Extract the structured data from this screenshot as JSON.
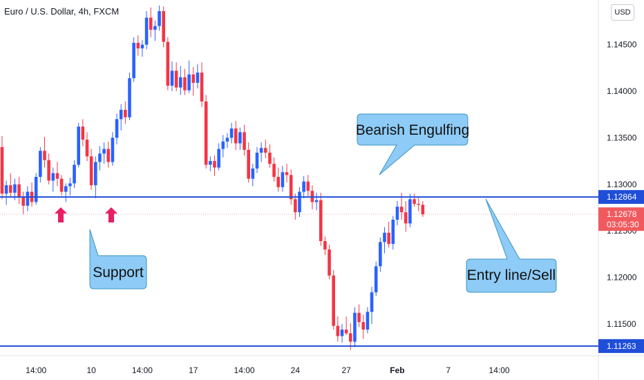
{
  "header": {
    "title": "Euro / U.S. Dollar, 4h, FXCM",
    "currency": "USD"
  },
  "colors": {
    "up": "#2962ff",
    "down": "#f23645",
    "level": "#1f4ed8",
    "callout_fill": "#8ecbf6",
    "callout_stroke": "#3a94c2",
    "arrow": "#e91e63",
    "price_tag": "#f05a5f"
  },
  "chart_data": {
    "type": "candlestick",
    "title": "Euro / U.S. Dollar, 4h, FXCM",
    "ylim": [
      1.1121,
      1.1495
    ],
    "y_ticks": [
      "1.14500",
      "1.14000",
      "1.13500",
      "1.13000",
      "1.12500",
      "1.12000",
      "1.11500"
    ],
    "y_tick_values": [
      1.145,
      1.14,
      1.135,
      1.13,
      1.125,
      1.12,
      1.115
    ],
    "x_ticks": [
      "14:00",
      "10",
      "14:00",
      "17",
      "14:00",
      "24",
      "27",
      "Feb",
      "7",
      "14:00"
    ],
    "x_tick_bold": [
      false,
      false,
      false,
      false,
      false,
      false,
      false,
      true,
      false,
      false
    ],
    "x_tick_index": [
      8,
      21,
      33,
      45,
      57,
      69,
      81,
      93,
      105,
      117
    ],
    "levels": [
      {
        "label": "1.12864",
        "value": 1.12864
      },
      {
        "label": "1.11263",
        "value": 1.11263
      }
    ],
    "last_price": {
      "label": "1.12678",
      "countdown": "03:05:30",
      "value": 1.12678
    },
    "annotations": [
      {
        "text": "Bearish Engulfing"
      },
      {
        "text": "Support"
      },
      {
        "text": "Entry line/Sell"
      }
    ],
    "candles": [
      [
        1.134,
        1.1352,
        1.1284,
        1.129
      ],
      [
        1.129,
        1.1304,
        1.1278,
        1.1299
      ],
      [
        1.1299,
        1.1312,
        1.1287,
        1.1291
      ],
      [
        1.1291,
        1.1306,
        1.1283,
        1.13
      ],
      [
        1.13,
        1.1308,
        1.1279,
        1.1286
      ],
      [
        1.1286,
        1.1292,
        1.1268,
        1.1277
      ],
      [
        1.1277,
        1.1298,
        1.1271,
        1.1292
      ],
      [
        1.1292,
        1.1302,
        1.1276,
        1.1281
      ],
      [
        1.1281,
        1.1312,
        1.1278,
        1.1308
      ],
      [
        1.1308,
        1.134,
        1.1302,
        1.1336
      ],
      [
        1.1336,
        1.1351,
        1.1318,
        1.1326
      ],
      [
        1.1326,
        1.1333,
        1.13,
        1.1304
      ],
      [
        1.1304,
        1.1318,
        1.1292,
        1.1312
      ],
      [
        1.1312,
        1.1324,
        1.1298,
        1.1306
      ],
      [
        1.1306,
        1.131,
        1.1288,
        1.1292
      ],
      [
        1.1292,
        1.1301,
        1.1281,
        1.1298
      ],
      [
        1.1298,
        1.1307,
        1.1288,
        1.1301
      ],
      [
        1.1301,
        1.1326,
        1.1296,
        1.1321
      ],
      [
        1.1321,
        1.1366,
        1.1318,
        1.1362
      ],
      [
        1.1362,
        1.137,
        1.1341,
        1.1348
      ],
      [
        1.1348,
        1.1356,
        1.1325,
        1.133
      ],
      [
        1.133,
        1.1338,
        1.1294,
        1.1299
      ],
      [
        1.1299,
        1.133,
        1.1285,
        1.1324
      ],
      [
        1.1324,
        1.1341,
        1.1315,
        1.1333
      ],
      [
        1.1333,
        1.1345,
        1.1322,
        1.1338
      ],
      [
        1.1338,
        1.1346,
        1.1318,
        1.1324
      ],
      [
        1.1324,
        1.1356,
        1.132,
        1.135
      ],
      [
        1.135,
        1.1376,
        1.1343,
        1.137
      ],
      [
        1.137,
        1.1386,
        1.1358,
        1.138
      ],
      [
        1.138,
        1.1389,
        1.1365,
        1.1372
      ],
      [
        1.1372,
        1.142,
        1.1369,
        1.1414
      ],
      [
        1.1414,
        1.1458,
        1.141,
        1.1452
      ],
      [
        1.1452,
        1.146,
        1.1438,
        1.1446
      ],
      [
        1.1446,
        1.1455,
        1.1437,
        1.145
      ],
      [
        1.145,
        1.1486,
        1.1445,
        1.1479
      ],
      [
        1.1479,
        1.149,
        1.1458,
        1.1466
      ],
      [
        1.1466,
        1.1476,
        1.1454,
        1.147
      ],
      [
        1.147,
        1.1492,
        1.1465,
        1.1486
      ],
      [
        1.1486,
        1.1491,
        1.1447,
        1.1453
      ],
      [
        1.1453,
        1.1458,
        1.1401,
        1.1406
      ],
      [
        1.1406,
        1.1432,
        1.14,
        1.1422
      ],
      [
        1.1422,
        1.1431,
        1.14,
        1.1404
      ],
      [
        1.1404,
        1.1427,
        1.1396,
        1.1415
      ],
      [
        1.1415,
        1.1424,
        1.1396,
        1.1401
      ],
      [
        1.1401,
        1.1433,
        1.1398,
        1.1418
      ],
      [
        1.1418,
        1.1426,
        1.1395,
        1.1409
      ],
      [
        1.1409,
        1.1429,
        1.1403,
        1.142
      ],
      [
        1.142,
        1.1431,
        1.1383,
        1.1389
      ],
      [
        1.1389,
        1.1396,
        1.1317,
        1.1321
      ],
      [
        1.1321,
        1.133,
        1.1314,
        1.1325
      ],
      [
        1.1325,
        1.1331,
        1.1309,
        1.1318
      ],
      [
        1.1318,
        1.1344,
        1.1315,
        1.1338
      ],
      [
        1.1338,
        1.1353,
        1.1329,
        1.1346
      ],
      [
        1.1346,
        1.1355,
        1.1339,
        1.135
      ],
      [
        1.135,
        1.1366,
        1.1344,
        1.136
      ],
      [
        1.136,
        1.1368,
        1.1337,
        1.1344
      ],
      [
        1.1344,
        1.1361,
        1.1337,
        1.1356
      ],
      [
        1.1356,
        1.1364,
        1.1331,
        1.1337
      ],
      [
        1.1337,
        1.1345,
        1.1302,
        1.1306
      ],
      [
        1.1306,
        1.1322,
        1.1298,
        1.1317
      ],
      [
        1.1317,
        1.134,
        1.1312,
        1.1334
      ],
      [
        1.1334,
        1.1345,
        1.1324,
        1.1339
      ],
      [
        1.1339,
        1.1348,
        1.1328,
        1.1334
      ],
      [
        1.1334,
        1.1343,
        1.1318,
        1.1322
      ],
      [
        1.1322,
        1.1329,
        1.1303,
        1.1308
      ],
      [
        1.1308,
        1.1318,
        1.1292,
        1.1297
      ],
      [
        1.1297,
        1.132,
        1.1292,
        1.1313
      ],
      [
        1.1313,
        1.1322,
        1.1302,
        1.131
      ],
      [
        1.131,
        1.1316,
        1.1278,
        1.1284
      ],
      [
        1.1284,
        1.129,
        1.1262,
        1.127
      ],
      [
        1.127,
        1.1297,
        1.1265,
        1.1292
      ],
      [
        1.1292,
        1.1309,
        1.1285,
        1.1303
      ],
      [
        1.1303,
        1.131,
        1.1286,
        1.1293
      ],
      [
        1.1293,
        1.1299,
        1.1273,
        1.1281
      ],
      [
        1.1281,
        1.1291,
        1.1272,
        1.1283
      ],
      [
        1.1283,
        1.1291,
        1.1234,
        1.1239
      ],
      [
        1.1239,
        1.1244,
        1.1224,
        1.123
      ],
      [
        1.123,
        1.1235,
        1.1198,
        1.1202
      ],
      [
        1.1202,
        1.1208,
        1.1144,
        1.1148
      ],
      [
        1.1148,
        1.1158,
        1.1131,
        1.1137
      ],
      [
        1.1137,
        1.115,
        1.113,
        1.1144
      ],
      [
        1.1144,
        1.1158,
        1.1138,
        1.114
      ],
      [
        1.114,
        1.1151,
        1.1122,
        1.1131
      ],
      [
        1.1131,
        1.1168,
        1.1125,
        1.1162
      ],
      [
        1.1162,
        1.1171,
        1.1147,
        1.1152
      ],
      [
        1.1152,
        1.116,
        1.1134,
        1.1144
      ],
      [
        1.1144,
        1.1168,
        1.114,
        1.1163
      ],
      [
        1.1163,
        1.119,
        1.115,
        1.1184
      ],
      [
        1.1184,
        1.1217,
        1.118,
        1.1212
      ],
      [
        1.1212,
        1.1243,
        1.1206,
        1.1238
      ],
      [
        1.1238,
        1.1254,
        1.1226,
        1.1248
      ],
      [
        1.1248,
        1.126,
        1.1232,
        1.1236
      ],
      [
        1.1236,
        1.1266,
        1.123,
        1.1262
      ],
      [
        1.1262,
        1.1282,
        1.1256,
        1.1276
      ],
      [
        1.1276,
        1.1291,
        1.1262,
        1.127
      ],
      [
        1.127,
        1.1282,
        1.1249,
        1.1258
      ],
      [
        1.1258,
        1.129,
        1.1254,
        1.1284
      ],
      [
        1.1284,
        1.129,
        1.1276,
        1.1279
      ],
      [
        1.1279,
        1.1287,
        1.1271,
        1.1278
      ],
      [
        1.1278,
        1.1282,
        1.1265,
        1.12678
      ]
    ]
  }
}
